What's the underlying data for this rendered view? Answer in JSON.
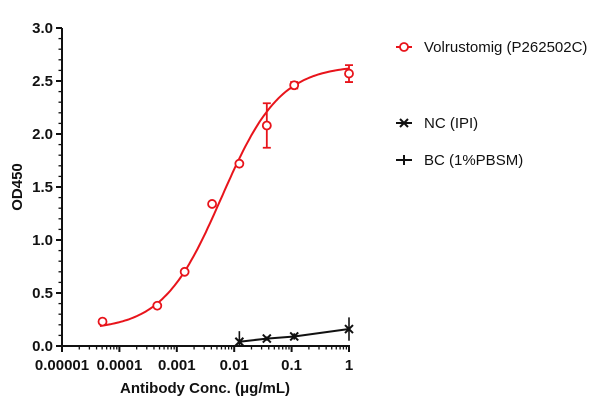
{
  "chart_data": {
    "type": "line",
    "title": "",
    "xlabel": "Antibody Conc. (μg/mL)",
    "ylabel": "OD450",
    "x_scale": "log",
    "xlim": [
      1e-05,
      1
    ],
    "ylim": [
      0,
      3.0
    ],
    "x_ticks": [
      "0.00001",
      "0.0001",
      "0.001",
      "0.01",
      "0.1",
      "1"
    ],
    "y_ticks": [
      "0.0",
      "0.5",
      "1.0",
      "1.5",
      "2.0",
      "2.5",
      "3.0"
    ],
    "grid": false,
    "legend_position": "right",
    "series": [
      {
        "name": "Volrustomig (P262502C)",
        "color": "#e8141b",
        "marker": "open-circle",
        "fit": "sigmoidal curve",
        "x": [
          5.08e-05,
          0.000457,
          0.00137,
          0.00412,
          0.0123,
          0.037,
          0.111,
          1
        ],
        "y": [
          0.23,
          0.38,
          0.7,
          1.34,
          1.72,
          2.08,
          2.46,
          2.57
        ],
        "err": [
          0,
          0,
          0,
          0,
          0,
          0.21,
          0.03,
          0.08
        ]
      },
      {
        "name": "NC (IPI)",
        "color": "#111111",
        "marker": "x",
        "x": [
          0.0123,
          0.037,
          0.111,
          1
        ],
        "y": [
          0.04,
          0.07,
          0.09,
          0.16
        ],
        "err": [
          0.1,
          0.02,
          0.03,
          0.11
        ]
      },
      {
        "name": "BC (1%PBSM)",
        "color": "#111111",
        "marker": "plus",
        "x": [],
        "y": []
      }
    ]
  }
}
